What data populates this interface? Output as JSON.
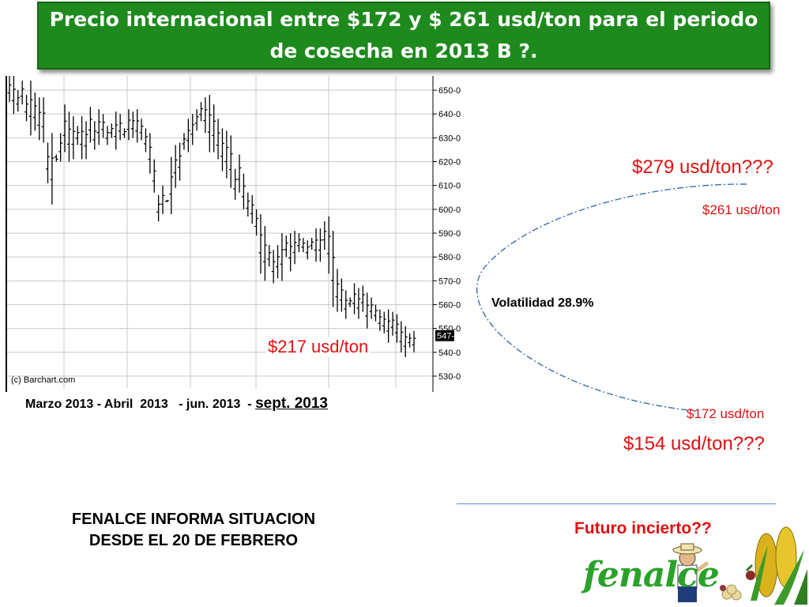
{
  "title": "Precio internacional entre $172 y $ 261 usd/ton para el periodo de cosecha en 2013 B ?.",
  "chart_data": {
    "type": "ohlc",
    "source_label": "(c) Barchart.com",
    "y_ticks": [
      "650-0",
      "640-0",
      "630-0",
      "620-0",
      "610-0",
      "600-0",
      "590-0",
      "580-0",
      "570-0",
      "560-0",
      "550-0",
      "540-0",
      "530-0"
    ],
    "y_range": [
      525,
      656
    ],
    "last_price_label": "547-0",
    "x_label": "Marzo 2013 - Abril  2013   - jun. 2013  -",
    "x_label_end": "sept. 2013",
    "bars_high": [
      656,
      656,
      650,
      654,
      648,
      654,
      649,
      647,
      647,
      628,
      632,
      620,
      632,
      644,
      641,
      639,
      635,
      639,
      637,
      643,
      637,
      642,
      640,
      635,
      636,
      641,
      640,
      634,
      642,
      641,
      642,
      638,
      634,
      632,
      621,
      606,
      610,
      604,
      622,
      627,
      628,
      632,
      638,
      640,
      642,
      645,
      647,
      648,
      644,
      638,
      634,
      633,
      631,
      617,
      623,
      615,
      607,
      606,
      600,
      598,
      593,
      585,
      583,
      585,
      590,
      589,
      590,
      591,
      590,
      588,
      587,
      588,
      592,
      592,
      595,
      597,
      591,
      575,
      571,
      566,
      563,
      569,
      567,
      568,
      565,
      563,
      560,
      558,
      557,
      558,
      557,
      556,
      553,
      551,
      548,
      549
    ],
    "bars_low": [
      645,
      640,
      641,
      644,
      637,
      631,
      633,
      629,
      628,
      611,
      602,
      623,
      620,
      624,
      620,
      621,
      627,
      621,
      621,
      628,
      625,
      627,
      630,
      627,
      630,
      625,
      629,
      630,
      629,
      630,
      628,
      629,
      624,
      615,
      607,
      595,
      598,
      603,
      598,
      609,
      612,
      625,
      624,
      627,
      633,
      637,
      632,
      624,
      624,
      621,
      616,
      613,
      609,
      604,
      607,
      600,
      597,
      594,
      589,
      573,
      570,
      576,
      569,
      571,
      570,
      580,
      574,
      577,
      582,
      582,
      579,
      583,
      578,
      578,
      583,
      573,
      559,
      557,
      557,
      554,
      559,
      556,
      554,
      557,
      550,
      554,
      553,
      549,
      548,
      544,
      547,
      544,
      540,
      538,
      542,
      540
    ]
  },
  "labels": {
    "price_279": "$279 usd/ton???",
    "price_261": "$261 usd/ton",
    "price_217": "$217 usd/ton",
    "price_172": "$172 usd/ton",
    "price_154": "$154 usd/ton???",
    "volatility": "Volatilidad 28.9%"
  },
  "footer": {
    "info_line1": "FENALCE INFORMA SITUACION",
    "info_line2": "DESDE EL 20 DE FEBRERO",
    "future": "Futuro incierto??",
    "logo": "fenalce"
  },
  "colors": {
    "title_bg": "#1e8a1e",
    "accent_red": "#e01010",
    "ellipse_blue": "#3a6fb0"
  }
}
